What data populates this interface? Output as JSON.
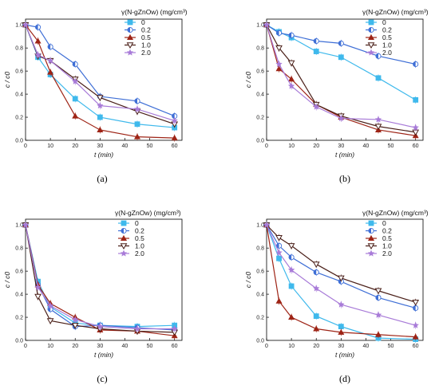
{
  "colors": {
    "0": "#3fb9ec",
    "0.2": "#3f6fd6",
    "0.5": "#9e2416",
    "1.0": "#4a1f18",
    "2.0": "#a87bd8"
  },
  "chart_data": [
    {
      "type": "line",
      "panel": "(a)",
      "legend_title": "γ(N-gZnOw) (mg/cm³)",
      "xlabel": "t (min)",
      "ylabel": "c / c0",
      "xlim": [
        0,
        63
      ],
      "ylim": [
        0,
        1.05
      ],
      "xticks": [
        0,
        10,
        20,
        30,
        40,
        50,
        60
      ],
      "yticks": [
        0.0,
        0.2,
        0.4,
        0.6,
        0.8,
        1.0
      ],
      "legend_position": "top-right",
      "x": [
        0,
        5,
        10,
        20,
        30,
        45,
        60
      ],
      "series": [
        {
          "name": "0",
          "marker": "square",
          "values": [
            1.0,
            0.72,
            0.57,
            0.36,
            0.2,
            0.14,
            0.11
          ]
        },
        {
          "name": "0.2",
          "marker": "circle-half",
          "values": [
            1.0,
            0.98,
            0.81,
            0.66,
            0.38,
            0.34,
            0.21
          ]
        },
        {
          "name": "0.5",
          "marker": "triangle-up",
          "values": [
            1.0,
            0.86,
            0.59,
            0.21,
            0.09,
            0.03,
            0.02
          ]
        },
        {
          "name": "1.0",
          "marker": "triangle-down",
          "values": [
            1.0,
            0.73,
            0.69,
            0.53,
            0.37,
            0.25,
            0.14
          ]
        },
        {
          "name": "2.0",
          "marker": "star",
          "values": [
            1.0,
            0.74,
            0.69,
            0.51,
            0.3,
            0.27,
            0.17
          ]
        }
      ]
    },
    {
      "type": "line",
      "panel": "(b)",
      "legend_title": "γ(N-gZnOw) (mg/cm³)",
      "xlabel": "t (min)",
      "ylabel": "c / c0",
      "xlim": [
        0,
        63
      ],
      "ylim": [
        0,
        1.05
      ],
      "xticks": [
        0,
        10,
        20,
        30,
        40,
        50,
        60
      ],
      "yticks": [
        0.0,
        0.2,
        0.4,
        0.6,
        0.8,
        1.0
      ],
      "legend_position": "top-right",
      "x": [
        0,
        5,
        10,
        20,
        30,
        45,
        60
      ],
      "series": [
        {
          "name": "0",
          "marker": "square",
          "values": [
            1.0,
            0.94,
            0.89,
            0.77,
            0.72,
            0.54,
            0.35
          ]
        },
        {
          "name": "0.2",
          "marker": "circle-half",
          "values": [
            1.0,
            0.93,
            0.91,
            0.86,
            0.84,
            0.73,
            0.66
          ]
        },
        {
          "name": "0.5",
          "marker": "triangle-up",
          "values": [
            1.0,
            0.62,
            0.53,
            0.31,
            0.2,
            0.09,
            0.04
          ]
        },
        {
          "name": "1.0",
          "marker": "triangle-down",
          "values": [
            1.0,
            0.8,
            0.67,
            0.31,
            0.21,
            0.12,
            0.07
          ]
        },
        {
          "name": "2.0",
          "marker": "star",
          "values": [
            1.0,
            0.66,
            0.47,
            0.29,
            0.19,
            0.18,
            0.11
          ]
        }
      ]
    },
    {
      "type": "line",
      "panel": "(c)",
      "legend_title": "γ(N-gZnOw) (mg/cm³)",
      "xlabel": "t (min)",
      "ylabel": "c / c0",
      "xlim": [
        0,
        63
      ],
      "ylim": [
        0,
        1.05
      ],
      "xticks": [
        0,
        10,
        20,
        30,
        40,
        50,
        60
      ],
      "yticks": [
        0.0,
        0.2,
        0.4,
        0.6,
        0.8,
        1.0
      ],
      "legend_position": "top-right",
      "x": [
        0,
        5,
        10,
        20,
        30,
        45,
        60
      ],
      "series": [
        {
          "name": "0",
          "marker": "square",
          "values": [
            1.0,
            0.51,
            0.29,
            0.15,
            0.13,
            0.12,
            0.13
          ]
        },
        {
          "name": "0.2",
          "marker": "circle-half",
          "values": [
            1.0,
            0.48,
            0.27,
            0.12,
            0.13,
            0.11,
            0.09
          ]
        },
        {
          "name": "0.5",
          "marker": "triangle-up",
          "values": [
            1.0,
            0.48,
            0.32,
            0.2,
            0.09,
            0.08,
            0.04
          ]
        },
        {
          "name": "1.0",
          "marker": "triangle-down",
          "values": [
            1.0,
            0.38,
            0.17,
            0.13,
            0.1,
            0.08,
            0.07
          ]
        },
        {
          "name": "2.0",
          "marker": "star",
          "values": [
            1.0,
            0.46,
            0.3,
            0.18,
            0.12,
            0.1,
            0.1
          ]
        }
      ]
    },
    {
      "type": "line",
      "panel": "(d)",
      "legend_title": "γ(N-gZnOw) (mg/cm³)",
      "xlabel": "t (min)",
      "ylabel": "c / c0",
      "xlim": [
        0,
        63
      ],
      "ylim": [
        0,
        1.05
      ],
      "xticks": [
        0,
        10,
        20,
        30,
        40,
        50,
        60
      ],
      "yticks": [
        0.0,
        0.2,
        0.4,
        0.6,
        0.8,
        1.0
      ],
      "legend_position": "top-right",
      "x": [
        0,
        5,
        10,
        20,
        30,
        45,
        60
      ],
      "series": [
        {
          "name": "0",
          "marker": "square",
          "values": [
            1.0,
            0.71,
            0.47,
            0.21,
            0.12,
            0.02,
            0.01
          ]
        },
        {
          "name": "0.2",
          "marker": "circle-half",
          "values": [
            1.0,
            0.82,
            0.72,
            0.59,
            0.51,
            0.37,
            0.28
          ]
        },
        {
          "name": "0.5",
          "marker": "triangle-up",
          "values": [
            1.0,
            0.34,
            0.2,
            0.1,
            0.07,
            0.05,
            0.03
          ]
        },
        {
          "name": "1.0",
          "marker": "triangle-down",
          "values": [
            1.0,
            0.89,
            0.82,
            0.66,
            0.54,
            0.43,
            0.33
          ]
        },
        {
          "name": "2.0",
          "marker": "star",
          "values": [
            1.0,
            0.76,
            0.61,
            0.45,
            0.31,
            0.22,
            0.13
          ]
        }
      ]
    }
  ]
}
